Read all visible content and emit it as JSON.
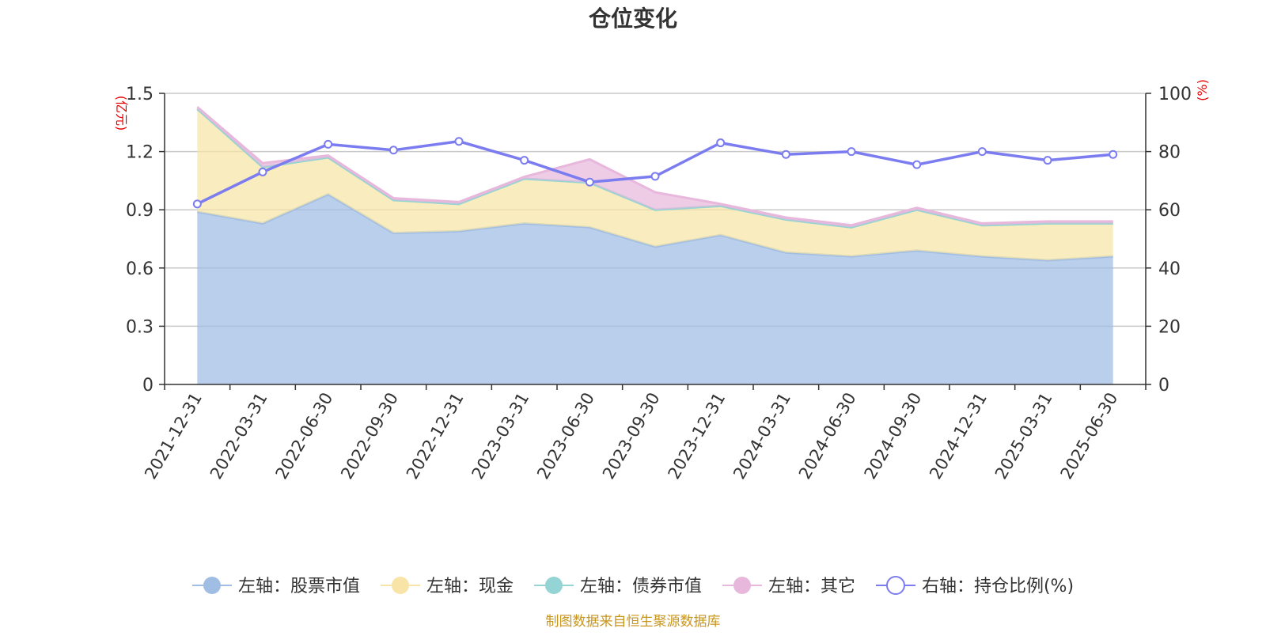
{
  "chart_data": {
    "type": "area",
    "title": "仓位变化",
    "left_axis_unit": "(亿元)",
    "right_axis_unit": "(%)",
    "left_ylim": [
      0,
      1.5
    ],
    "right_ylim": [
      0,
      100
    ],
    "left_ticks": [
      "0",
      "0.3",
      "0.6",
      "0.9",
      "1.2",
      "1.5"
    ],
    "right_ticks": [
      "0",
      "20",
      "40",
      "60",
      "80",
      "100"
    ],
    "grid": true,
    "legend_position": "bottom",
    "categories": [
      "2021-12-31",
      "2022-03-31",
      "2022-06-30",
      "2022-09-30",
      "2022-12-31",
      "2023-03-31",
      "2023-06-30",
      "2023-09-30",
      "2023-12-31",
      "2024-03-31",
      "2024-06-30",
      "2024-09-30",
      "2024-12-31",
      "2025-03-31",
      "2025-06-30"
    ],
    "series": [
      {
        "name": "左轴：股票市值",
        "axis": "left",
        "kind": "stacked-area",
        "color": "#a0bde3",
        "values": [
          0.89,
          0.83,
          0.98,
          0.78,
          0.79,
          0.83,
          0.81,
          0.71,
          0.77,
          0.68,
          0.66,
          0.69,
          0.66,
          0.64,
          0.66
        ]
      },
      {
        "name": "左轴：现金",
        "axis": "left",
        "kind": "stacked-area",
        "color": "#f7e4a6",
        "values": [
          0.53,
          0.29,
          0.19,
          0.17,
          0.14,
          0.23,
          0.23,
          0.19,
          0.15,
          0.17,
          0.15,
          0.21,
          0.16,
          0.19,
          0.17
        ]
      },
      {
        "name": "左轴：债券市值",
        "axis": "left",
        "kind": "stacked-area",
        "color": "#94d4d4",
        "values": [
          0,
          0,
          0,
          0,
          0,
          0,
          0,
          0,
          0,
          0,
          0,
          0,
          0,
          0,
          0
        ]
      },
      {
        "name": "左轴：其它",
        "axis": "left",
        "kind": "stacked-area",
        "color": "#e8b8dc",
        "values": [
          0.01,
          0.02,
          0.01,
          0.01,
          0.01,
          0.01,
          0.12,
          0.09,
          0.01,
          0.01,
          0.01,
          0.01,
          0.01,
          0.01,
          0.01
        ]
      },
      {
        "name": "右轴：持仓比例(%)",
        "axis": "right",
        "kind": "line",
        "color": "#7b7cf0",
        "values": [
          62,
          73,
          82.5,
          80.5,
          83.5,
          77,
          69.5,
          71.5,
          83,
          79,
          80,
          75.5,
          80,
          77,
          79
        ]
      }
    ],
    "source_note": "制图数据来自恒生聚源数据库"
  }
}
